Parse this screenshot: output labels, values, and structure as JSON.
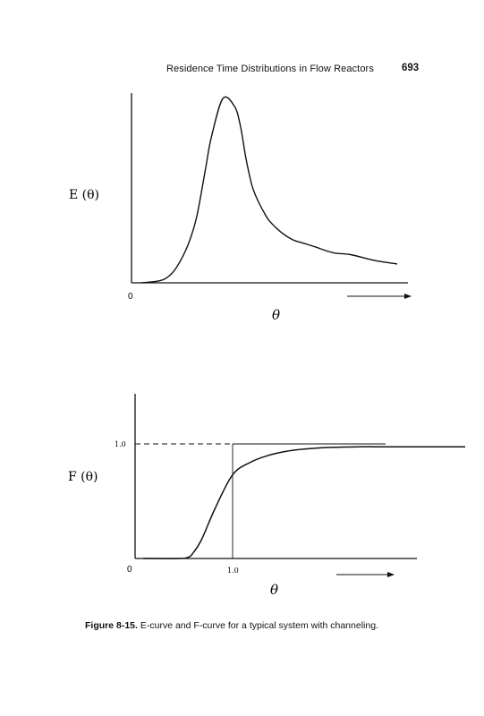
{
  "header": {
    "running_title": "Residence Time Distributions in Flow Reactors",
    "page_number": "693"
  },
  "chart_data": [
    {
      "type": "line",
      "ylabel": "E (θ)",
      "xlabel": "θ",
      "origin_label": "0",
      "x_tick_labels": [],
      "y_tick_labels": [],
      "series": [
        {
          "x": [
            0.0,
            0.3,
            0.45,
            0.6,
            0.8,
            0.95,
            1.1,
            1.2,
            1.4,
            1.6,
            1.7,
            1.8,
            1.9,
            2.0,
            2.1,
            2.2,
            2.4,
            2.6,
            2.8,
            3.0,
            3.3,
            3.6,
            4.0,
            4.4
          ],
          "y": [
            0.0,
            0.01,
            0.03,
            0.08,
            0.2,
            0.35,
            0.6,
            0.77,
            0.98,
            0.94,
            0.84,
            0.66,
            0.52,
            0.44,
            0.38,
            0.33,
            0.27,
            0.23,
            0.21,
            0.19,
            0.16,
            0.15,
            0.12,
            0.1
          ]
        }
      ]
    },
    {
      "type": "line",
      "ylabel": "F (θ)",
      "xlabel": "θ",
      "origin_label": "0",
      "x_tick_labels": [
        "1.0"
      ],
      "y_tick_labels": [
        "1.0"
      ],
      "series": [
        {
          "x": [
            0.0,
            0.4,
            0.5,
            0.55,
            0.65,
            0.8,
            1.0,
            1.2,
            1.4,
            1.6,
            1.8,
            2.0,
            2.2,
            2.4,
            2.6,
            2.8,
            3.0,
            3.2,
            3.4,
            3.6
          ],
          "y": [
            0.0,
            0.0,
            0.01,
            0.04,
            0.16,
            0.43,
            0.73,
            0.84,
            0.9,
            0.935,
            0.955,
            0.967,
            0.972,
            0.975,
            0.975,
            0.975,
            0.975,
            0.975,
            0.975,
            0.975
          ]
        }
      ]
    }
  ],
  "caption": {
    "label": "Figure 8-15.",
    "text": " E-curve and F-curve for a typical system with channeling."
  }
}
